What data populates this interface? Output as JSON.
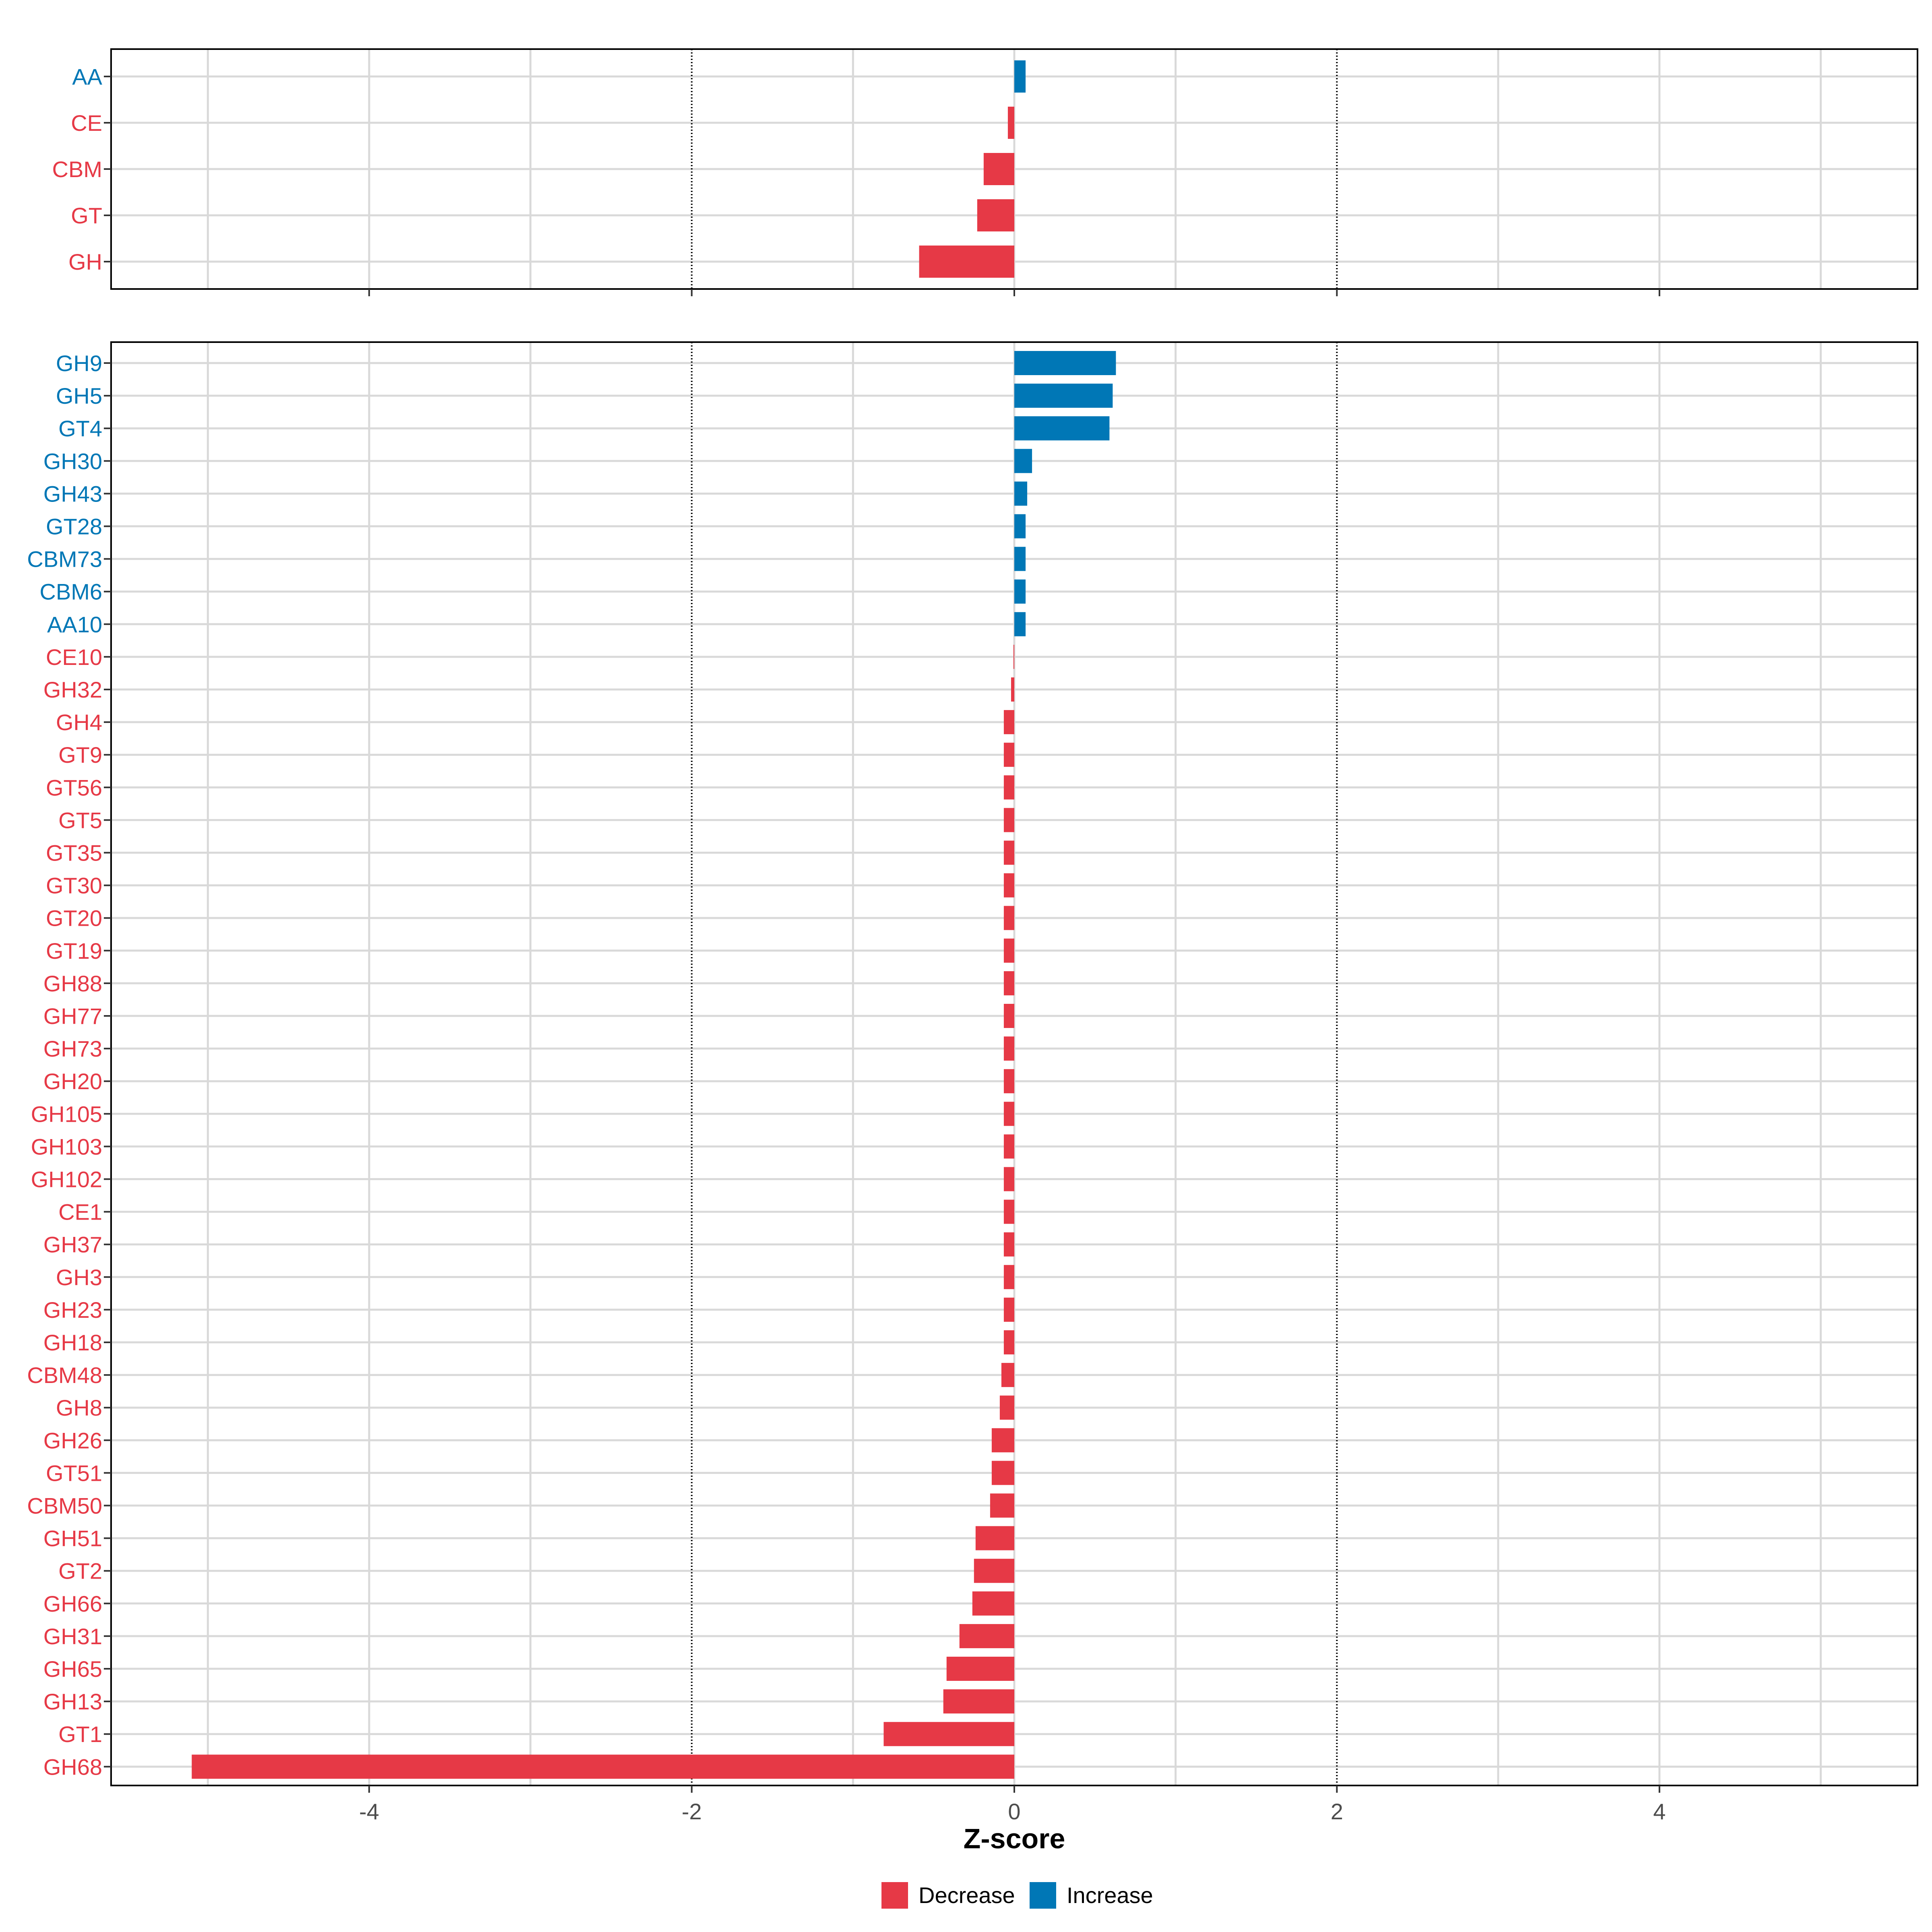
{
  "chart_data": [
    {
      "type": "bar",
      "orientation": "horizontal",
      "panel": "top",
      "categories": [
        "AA",
        "CE",
        "CBM",
        "GT",
        "GH"
      ],
      "values": [
        0.07,
        -0.04,
        -0.19,
        -0.23,
        -0.59
      ],
      "xlim": [
        -5.6,
        5.6
      ],
      "xticks": [
        -4,
        -2,
        0,
        2,
        4
      ],
      "reference_lines": [
        -2,
        2
      ],
      "grid": true
    },
    {
      "type": "bar",
      "orientation": "horizontal",
      "panel": "bottom",
      "categories": [
        "GH9",
        "GH5",
        "GT4",
        "GH30",
        "GH43",
        "GT28",
        "CBM73",
        "CBM6",
        "AA10",
        "CE10",
        "GH32",
        "GH4",
        "GT9",
        "GT56",
        "GT5",
        "GT35",
        "GT30",
        "GT20",
        "GT19",
        "GH88",
        "GH77",
        "GH73",
        "GH20",
        "GH105",
        "GH103",
        "GH102",
        "CE1",
        "GH37",
        "GH3",
        "GH23",
        "GH18",
        "CBM48",
        "GH8",
        "GH26",
        "GT51",
        "CBM50",
        "GH51",
        "GT2",
        "GH66",
        "GH31",
        "GH65",
        "GH13",
        "GT1",
        "GH68"
      ],
      "values": [
        0.63,
        0.61,
        0.59,
        0.11,
        0.08,
        0.07,
        0.07,
        0.07,
        0.07,
        -0.005,
        -0.02,
        -0.065,
        -0.065,
        -0.065,
        -0.065,
        -0.065,
        -0.065,
        -0.065,
        -0.065,
        -0.065,
        -0.065,
        -0.065,
        -0.065,
        -0.065,
        -0.065,
        -0.065,
        -0.065,
        -0.065,
        -0.065,
        -0.065,
        -0.065,
        -0.08,
        -0.09,
        -0.14,
        -0.14,
        -0.15,
        -0.24,
        -0.25,
        -0.26,
        -0.34,
        -0.42,
        -0.44,
        -0.81,
        -5.1
      ],
      "xlim": [
        -5.6,
        5.6
      ],
      "xticks": [
        -4,
        -2,
        0,
        2,
        4
      ],
      "reference_lines": [
        -2,
        2
      ],
      "grid": true
    }
  ],
  "xlabel": "Z-score",
  "tick_labels": [
    "-4",
    "-2",
    "0",
    "2",
    "4"
  ],
  "legend": {
    "position": "bottom",
    "items": [
      {
        "label": "Decrease",
        "color": "#E63946"
      },
      {
        "label": "Increase",
        "color": "#0077B6"
      }
    ]
  },
  "colors": {
    "decrease": "#E63946",
    "increase": "#0077B6",
    "grid": "#D9D9D9",
    "reference": "#000000",
    "tick_text": "#4D4D4D"
  }
}
